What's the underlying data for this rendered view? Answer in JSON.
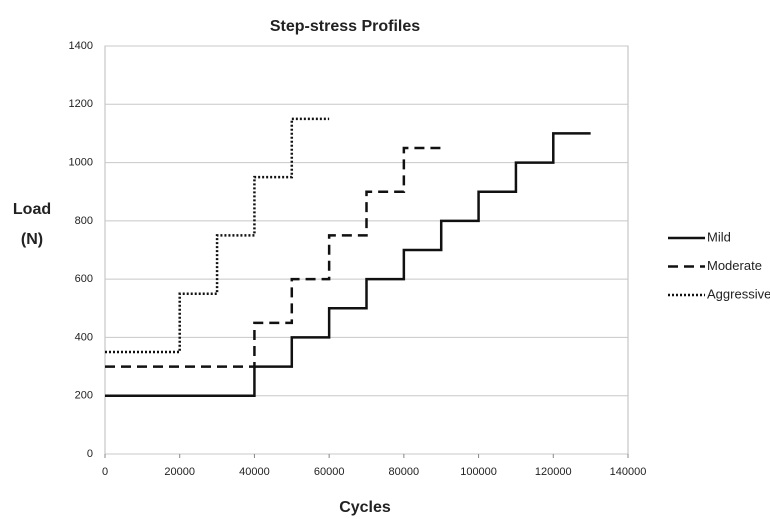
{
  "chart_data": {
    "type": "line",
    "title": "Step-stress Profiles",
    "xlabel": "Cycles",
    "ylabel": [
      "Load",
      "(N)"
    ],
    "xlim": [
      0,
      140000
    ],
    "xticks": [
      0,
      20000,
      40000,
      60000,
      80000,
      100000,
      120000,
      140000
    ],
    "ylim": [
      0,
      1400
    ],
    "yticks": [
      0,
      200,
      400,
      600,
      800,
      1000,
      1200,
      1400
    ],
    "grid": true,
    "legend": "right",
    "series": [
      {
        "name": "Mild",
        "color": "#111111",
        "dash": "solid",
        "x": [
          0,
          40000,
          40000,
          50000,
          50000,
          60000,
          60000,
          70000,
          70000,
          80000,
          80000,
          90000,
          90000,
          100000,
          100000,
          110000,
          110000,
          120000,
          120000,
          130000
        ],
        "values": [
          200,
          200,
          300,
          300,
          400,
          400,
          500,
          500,
          600,
          600,
          700,
          700,
          800,
          800,
          900,
          900,
          1000,
          1000,
          1100,
          1100
        ]
      },
      {
        "name": "Moderate",
        "color": "#111111",
        "dash": "dashed",
        "x": [
          0,
          40000,
          40000,
          50000,
          50000,
          60000,
          60000,
          70000,
          70000,
          80000,
          80000,
          90000
        ],
        "values": [
          300,
          300,
          450,
          450,
          600,
          600,
          750,
          750,
          900,
          900,
          1050,
          1050
        ]
      },
      {
        "name": "Aggressive",
        "color": "#111111",
        "dash": "dotted",
        "x": [
          0,
          20000,
          20000,
          30000,
          30000,
          40000,
          40000,
          50000,
          50000,
          60000
        ],
        "values": [
          350,
          350,
          550,
          550,
          750,
          750,
          950,
          950,
          1150,
          1150
        ]
      }
    ]
  }
}
